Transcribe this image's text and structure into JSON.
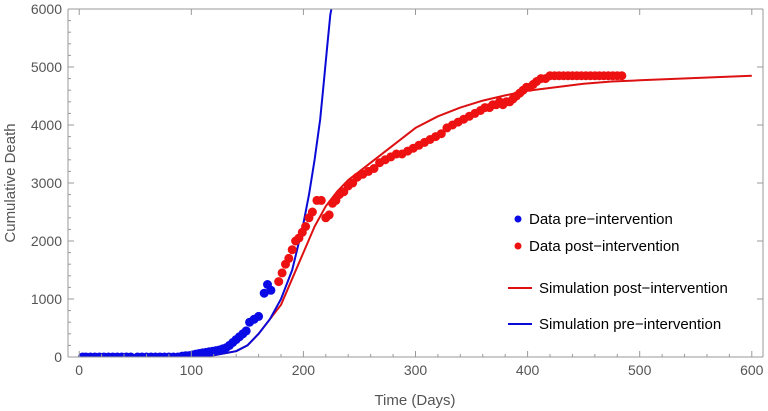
{
  "chart_data": {
    "type": "scatter",
    "xlabel": "Time (Days)",
    "ylabel": "Cumulative Death",
    "xlim": [
      -10,
      610
    ],
    "ylim": [
      0,
      6000
    ],
    "xticks": [
      0,
      100,
      200,
      300,
      400,
      500,
      600
    ],
    "yticks": [
      0,
      1000,
      2000,
      3000,
      4000,
      5000,
      6000
    ],
    "x_tick_labels": [
      "0",
      "100",
      "200",
      "300",
      "400",
      "500",
      "600"
    ],
    "y_tick_labels": [
      "0",
      "1000",
      "2000",
      "3000",
      "4000",
      "5000",
      "6000"
    ],
    "grid": false,
    "legend_position": "center-right",
    "series": [
      {
        "name": "Data pre−intervention",
        "kind": "points",
        "color": "#0a0ae6",
        "points": [
          [
            3,
            0
          ],
          [
            6,
            0
          ],
          [
            10,
            0
          ],
          [
            14,
            0
          ],
          [
            18,
            0
          ],
          [
            22,
            0
          ],
          [
            26,
            0
          ],
          [
            30,
            0
          ],
          [
            34,
            0
          ],
          [
            38,
            0
          ],
          [
            42,
            0
          ],
          [
            46,
            0
          ],
          [
            52,
            0
          ],
          [
            56,
            0
          ],
          [
            60,
            0
          ],
          [
            64,
            0
          ],
          [
            68,
            0
          ],
          [
            72,
            0
          ],
          [
            76,
            0
          ],
          [
            80,
            0
          ],
          [
            84,
            0
          ],
          [
            88,
            0
          ],
          [
            92,
            15
          ],
          [
            95,
            20
          ],
          [
            98,
            25
          ],
          [
            101,
            35
          ],
          [
            104,
            50
          ],
          [
            107,
            60
          ],
          [
            110,
            70
          ],
          [
            113,
            80
          ],
          [
            116,
            90
          ],
          [
            119,
            100
          ],
          [
            122,
            110
          ],
          [
            125,
            120
          ],
          [
            128,
            140
          ],
          [
            131,
            160
          ],
          [
            134,
            200
          ],
          [
            137,
            250
          ],
          [
            140,
            300
          ],
          [
            143,
            350
          ],
          [
            146,
            400
          ],
          [
            149,
            450
          ],
          [
            152,
            600
          ],
          [
            156,
            650
          ],
          [
            160,
            700
          ],
          [
            165,
            1100
          ],
          [
            168,
            1250
          ],
          [
            171,
            1150
          ]
        ]
      },
      {
        "name": "Data post−intervention",
        "kind": "points",
        "color": "#ee1111",
        "points": [
          [
            178,
            1300
          ],
          [
            181,
            1450
          ],
          [
            184,
            1600
          ],
          [
            187,
            1700
          ],
          [
            190,
            1850
          ],
          [
            193,
            2000
          ],
          [
            196,
            2050
          ],
          [
            199,
            2150
          ],
          [
            202,
            2250
          ],
          [
            205,
            2400
          ],
          [
            208,
            2500
          ],
          [
            212,
            2700
          ],
          [
            216,
            2700
          ],
          [
            220,
            2400
          ],
          [
            223,
            2450
          ],
          [
            226,
            2650
          ],
          [
            229,
            2700
          ],
          [
            232,
            2800
          ],
          [
            236,
            2850
          ],
          [
            240,
            2950
          ],
          [
            244,
            3000
          ],
          [
            248,
            3100
          ],
          [
            253,
            3150
          ],
          [
            258,
            3200
          ],
          [
            263,
            3250
          ],
          [
            268,
            3350
          ],
          [
            273,
            3400
          ],
          [
            278,
            3450
          ],
          [
            283,
            3500
          ],
          [
            288,
            3500
          ],
          [
            293,
            3550
          ],
          [
            298,
            3600
          ],
          [
            303,
            3650
          ],
          [
            308,
            3700
          ],
          [
            313,
            3750
          ],
          [
            318,
            3800
          ],
          [
            323,
            3850
          ],
          [
            328,
            3950
          ],
          [
            333,
            4000
          ],
          [
            338,
            4050
          ],
          [
            343,
            4100
          ],
          [
            348,
            4150
          ],
          [
            353,
            4200
          ],
          [
            358,
            4250
          ],
          [
            362,
            4300
          ],
          [
            366,
            4300
          ],
          [
            369,
            4350
          ],
          [
            372,
            4350
          ],
          [
            375,
            4400
          ],
          [
            378,
            4350
          ],
          [
            381,
            4400
          ],
          [
            384,
            4400
          ],
          [
            387,
            4450
          ],
          [
            390,
            4500
          ],
          [
            393,
            4550
          ],
          [
            396,
            4600
          ],
          [
            399,
            4650
          ],
          [
            402,
            4650
          ],
          [
            405,
            4700
          ],
          [
            408,
            4750
          ],
          [
            412,
            4800
          ],
          [
            416,
            4800
          ],
          [
            420,
            4850
          ],
          [
            424,
            4850
          ],
          [
            428,
            4850
          ],
          [
            432,
            4850
          ],
          [
            436,
            4850
          ],
          [
            440,
            4850
          ],
          [
            444,
            4850
          ],
          [
            448,
            4850
          ],
          [
            452,
            4850
          ],
          [
            456,
            4850
          ],
          [
            460,
            4850
          ],
          [
            464,
            4850
          ],
          [
            468,
            4850
          ],
          [
            472,
            4850
          ],
          [
            476,
            4850
          ],
          [
            480,
            4850
          ],
          [
            484,
            4850
          ]
        ]
      },
      {
        "name": "Simulation post−intervention",
        "kind": "line",
        "color": "#dd1111",
        "points": [
          [
            0,
            0
          ],
          [
            100,
            10
          ],
          [
            120,
            30
          ],
          [
            140,
            100
          ],
          [
            150,
            200
          ],
          [
            160,
            400
          ],
          [
            170,
            650
          ],
          [
            180,
            900
          ],
          [
            190,
            1350
          ],
          [
            200,
            1800
          ],
          [
            210,
            2250
          ],
          [
            220,
            2600
          ],
          [
            230,
            2850
          ],
          [
            240,
            3050
          ],
          [
            250,
            3200
          ],
          [
            260,
            3350
          ],
          [
            280,
            3650
          ],
          [
            300,
            3950
          ],
          [
            320,
            4150
          ],
          [
            340,
            4300
          ],
          [
            360,
            4420
          ],
          [
            380,
            4510
          ],
          [
            400,
            4590
          ],
          [
            425,
            4650
          ],
          [
            450,
            4710
          ],
          [
            475,
            4750
          ],
          [
            500,
            4770
          ],
          [
            550,
            4810
          ],
          [
            600,
            4850
          ]
        ]
      },
      {
        "name": "Simulation pre−intervention",
        "kind": "line",
        "color": "#0a0ad8",
        "points": [
          [
            0,
            0
          ],
          [
            100,
            10
          ],
          [
            120,
            30
          ],
          [
            140,
            100
          ],
          [
            150,
            200
          ],
          [
            160,
            400
          ],
          [
            170,
            650
          ],
          [
            180,
            1000
          ],
          [
            190,
            1500
          ],
          [
            200,
            2300
          ],
          [
            205,
            2800
          ],
          [
            210,
            3400
          ],
          [
            215,
            4100
          ],
          [
            218,
            4700
          ],
          [
            221,
            5300
          ],
          [
            224,
            5900
          ],
          [
            225,
            6000
          ]
        ]
      }
    ]
  }
}
